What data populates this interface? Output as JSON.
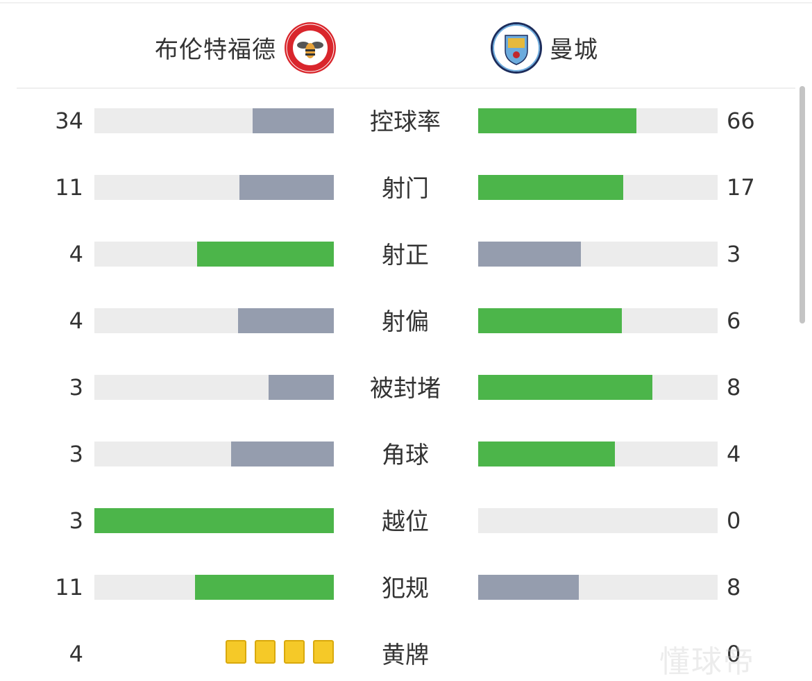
{
  "home": {
    "name": "布伦特福德",
    "logo_text": "BRENTFORD FOOTBALL CLUB 1889",
    "color": "#d9262c"
  },
  "away": {
    "name": "曼城",
    "logo_text": "MANCHESTER CITY",
    "color": "#6cabdd"
  },
  "colors": {
    "leader": "#4cb54a",
    "trailer": "#959dae",
    "track": "#ececec",
    "card": "#f5c928"
  },
  "stats": [
    {
      "label": "控球率",
      "home": 34,
      "away": 66
    },
    {
      "label": "射门",
      "home": 11,
      "away": 17
    },
    {
      "label": "射正",
      "home": 4,
      "away": 3
    },
    {
      "label": "射偏",
      "home": 4,
      "away": 6
    },
    {
      "label": "被封堵",
      "home": 3,
      "away": 8
    },
    {
      "label": "角球",
      "home": 3,
      "away": 4
    },
    {
      "label": "越位",
      "home": 3,
      "away": 0
    },
    {
      "label": "犯规",
      "home": 11,
      "away": 8
    }
  ],
  "yellow_cards": {
    "label": "黄牌",
    "home": 4,
    "away": 0
  },
  "watermark": "懂球帝"
}
